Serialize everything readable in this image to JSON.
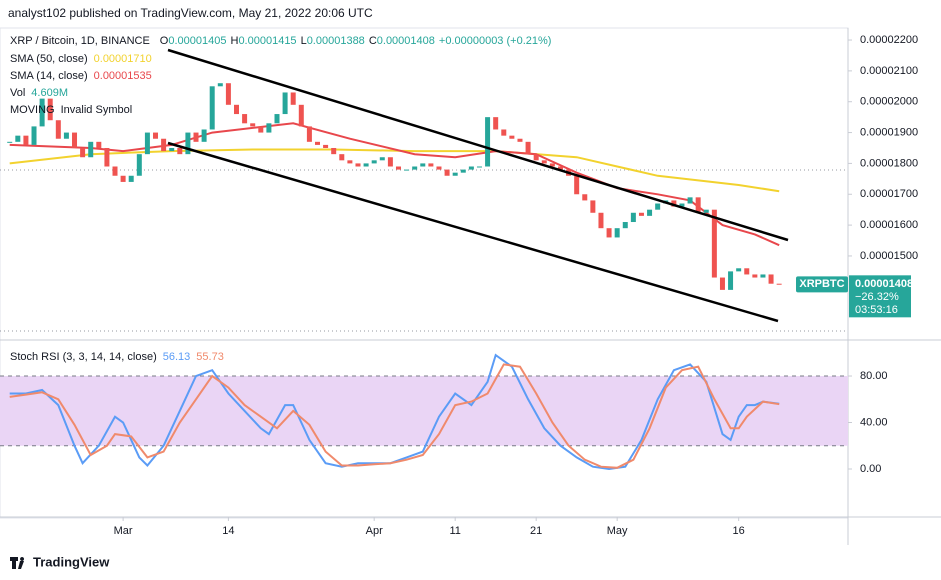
{
  "header": "analyst102 published on TradingView.com, May 21, 2022 20:06 UTC",
  "footer": "TradingView",
  "chart_data": [
    {
      "type": "candlestick",
      "title": "XRP / Bitcoin, 1D, BINANCE",
      "ohlc": [
        {
          "label": "O",
          "value": "0.00001405"
        },
        {
          "label": "H",
          "value": "0.00001415"
        },
        {
          "label": "L",
          "value": "0.00001388"
        },
        {
          "label": "C",
          "value": "0.00001408"
        },
        {
          "label": "",
          "value": "+0.00000003 (+0.21%)"
        }
      ],
      "volume": {
        "name": "Vol",
        "label": "4.609M"
      },
      "annotations": [
        "MOVING",
        "Invalid Symbol"
      ],
      "symbol": "XRPBTC",
      "last_price": "0.00001408",
      "change": "−26.32%",
      "countdown": "03:53:16",
      "up_color": "#26a69a",
      "down_color": "#ef5350",
      "values": [
        1.87e-05,
        1.89e-05,
        1.86e-05,
        1.92e-05,
        2.01e-05,
        1.94e-05,
        1.88e-05,
        1.9e-05,
        1.85e-05,
        1.82e-05,
        1.87e-05,
        1.85e-05,
        1.79e-05,
        1.76e-05,
        1.74e-05,
        1.76e-05,
        1.83e-05,
        1.9e-05,
        1.88e-05,
        1.84e-05,
        1.85e-05,
        1.83e-05,
        1.9e-05,
        1.87e-05,
        1.91e-05,
        2.05e-05,
        2.06e-05,
        1.99e-05,
        1.96e-05,
        1.93e-05,
        1.92e-05,
        1.9e-05,
        1.93e-05,
        1.96e-05,
        2.03e-05,
        1.99e-05,
        1.92e-05,
        1.87e-05,
        1.86e-05,
        1.85e-05,
        1.83e-05,
        1.81e-05,
        1.8e-05,
        1.79e-05,
        1.8e-05,
        1.81e-05,
        1.82e-05,
        1.79e-05,
        1.78e-05,
        1.78e-05,
        1.79e-05,
        1.8e-05,
        1.79e-05,
        1.78e-05,
        1.76e-05,
        1.77e-05,
        1.78e-05,
        1.79e-05,
        1.79e-05,
        1.95e-05,
        1.91e-05,
        1.89e-05,
        1.88e-05,
        1.87e-05,
        1.83e-05,
        1.81e-05,
        1.8e-05,
        1.79e-05,
        1.78e-05,
        1.76e-05,
        1.7e-05,
        1.68e-05,
        1.64e-05,
        1.59e-05,
        1.56e-05,
        1.59e-05,
        1.61e-05,
        1.64e-05,
        1.63e-05,
        1.65e-05,
        1.67e-05,
        1.68e-05,
        1.66e-05,
        1.67e-05,
        1.69e-05,
        1.64e-05,
        1.65e-05,
        1.43e-05,
        1.39e-05,
        1.45e-05,
        1.46e-05,
        1.44e-05,
        1.43e-05,
        1.44e-05,
        1.41e-05,
        1.408e-05
      ],
      "series": [
        {
          "name": "SMA (50, close)",
          "value_label": "0.00001710",
          "color": "#f2d22e",
          "x": [
            0,
            10,
            20,
            30,
            40,
            50,
            60,
            70,
            75,
            80,
            85,
            90,
            95
          ],
          "values": [
            1.8e-05,
            1.83e-05,
            1.84e-05,
            1.845e-05,
            1.845e-05,
            1.84e-05,
            1.84e-05,
            1.82e-05,
            1.79e-05,
            1.76e-05,
            1.745e-05,
            1.73e-05,
            1.71e-05
          ]
        },
        {
          "name": "SMA (14, close)",
          "value_label": "0.00001535",
          "color": "#e8474c",
          "x": [
            0,
            10,
            14,
            20,
            25,
            30,
            35,
            42,
            50,
            55,
            60,
            65,
            70,
            75,
            80,
            84,
            88,
            92,
            95
          ],
          "values": [
            1.86e-05,
            1.85e-05,
            1.84e-05,
            1.86e-05,
            1.9e-05,
            1.915e-05,
            1.93e-05,
            1.88e-05,
            1.83e-05,
            1.82e-05,
            1.84e-05,
            1.83e-05,
            1.77e-05,
            1.72e-05,
            1.7e-05,
            1.68e-05,
            1.6e-05,
            1.57e-05,
            1.535e-05
          ]
        }
      ],
      "xlim": [
        -1.2,
        103.5
      ],
      "ylim": [
        1.234e-05,
        2.239e-05
      ],
      "yticks": [
        {
          "value": 2.2e-05,
          "label": "0.00002200"
        },
        {
          "value": 2.1e-05,
          "label": "0.00002100"
        },
        {
          "value": 2e-05,
          "label": "0.00002000"
        },
        {
          "value": 1.9e-05,
          "label": "0.00001900"
        },
        {
          "value": 1.8e-05,
          "label": "0.00001800"
        },
        {
          "value": 1.7e-05,
          "label": "0.00001700"
        },
        {
          "value": 1.6e-05,
          "label": "0.00001600"
        },
        {
          "value": 1.5e-05,
          "label": "0.00001500"
        }
      ]
    },
    {
      "type": "line",
      "title": "Stoch RSI (3, 3, 14, 14, close)",
      "band": [
        20,
        80
      ],
      "band_color": "#ead5f5",
      "series": [
        {
          "name": "K",
          "value_label": "56.13",
          "color": "#5b9cf6",
          "x": [
            0,
            2,
            4,
            6,
            8,
            9,
            11,
            13,
            14,
            16,
            17,
            19,
            21,
            23,
            25,
            27,
            29,
            31,
            32,
            34,
            35,
            37,
            39,
            41,
            43,
            45,
            47,
            49,
            51,
            53,
            55,
            57,
            59,
            60,
            62,
            64,
            66,
            68,
            70,
            72,
            74,
            76,
            78,
            80,
            82,
            84,
            86,
            88,
            89,
            90,
            91,
            92,
            93,
            95
          ],
          "values": [
            65,
            65,
            68,
            55,
            20,
            5,
            20,
            45,
            40,
            10,
            3,
            20,
            50,
            80,
            85,
            65,
            50,
            35,
            30,
            55,
            55,
            25,
            5,
            2,
            5,
            5,
            5,
            10,
            15,
            45,
            65,
            55,
            75,
            98,
            88,
            60,
            35,
            20,
            10,
            2,
            0,
            2,
            25,
            60,
            85,
            90,
            75,
            30,
            25,
            45,
            55,
            55,
            58,
            56.13
          ]
        },
        {
          "name": "D",
          "value_label": "55.73",
          "color": "#f08a6c",
          "x": [
            0,
            2,
            4,
            6,
            8,
            10,
            12,
            13,
            15,
            17,
            19,
            21,
            23,
            25,
            27,
            29,
            31,
            33,
            35,
            37,
            39,
            41,
            43,
            45,
            47,
            49,
            51,
            53,
            55,
            57,
            59,
            61,
            63,
            65,
            67,
            69,
            71,
            73,
            75,
            77,
            79,
            81,
            83,
            85,
            87,
            89,
            90,
            91,
            93,
            95
          ],
          "values": [
            62,
            64,
            66,
            60,
            38,
            12,
            20,
            30,
            28,
            10,
            15,
            40,
            60,
            80,
            70,
            55,
            45,
            35,
            50,
            38,
            15,
            3,
            3,
            4,
            5,
            8,
            12,
            30,
            55,
            58,
            65,
            90,
            88,
            65,
            40,
            20,
            8,
            2,
            1,
            8,
            35,
            70,
            85,
            88,
            60,
            35,
            35,
            45,
            58,
            55.73
          ]
        }
      ],
      "xlim": [
        -1.2,
        103.5
      ],
      "ylim": [
        -39.6,
        106.7
      ],
      "yticks": [
        {
          "value": 80,
          "label": "80.00"
        },
        {
          "value": 40,
          "label": "40.00"
        },
        {
          "value": 0,
          "label": "0.00"
        }
      ],
      "xticks": [
        {
          "value": 14,
          "label": "Mar"
        },
        {
          "value": 27,
          "label": "14"
        },
        {
          "value": 45,
          "label": "Apr"
        },
        {
          "value": 55,
          "label": "11"
        },
        {
          "value": 65,
          "label": "21"
        },
        {
          "value": 75,
          "label": "May"
        },
        {
          "value": 90,
          "label": "16"
        }
      ]
    }
  ]
}
